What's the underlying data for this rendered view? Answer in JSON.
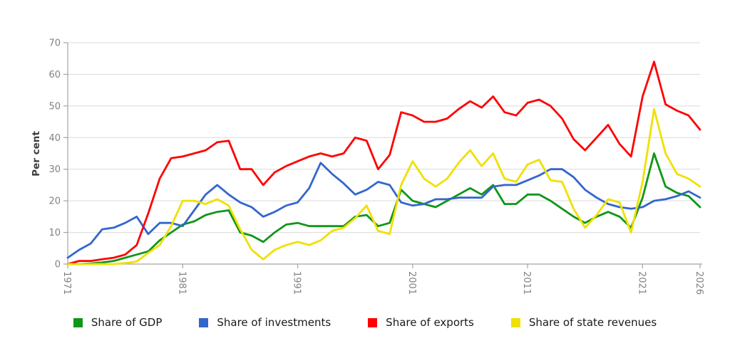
{
  "chart_data": {
    "type": "line",
    "title": "",
    "xlabel": "",
    "ylabel": "Per cent",
    "ylim": [
      0,
      70
    ],
    "yticks": [
      0,
      10,
      20,
      30,
      40,
      50,
      60,
      70
    ],
    "xticks": [
      1971,
      1981,
      1991,
      2001,
      2011,
      2021,
      2026
    ],
    "xlim": [
      1971,
      2026
    ],
    "grid": "horizontal",
    "legend_position": "bottom",
    "x": [
      1971,
      1972,
      1973,
      1974,
      1975,
      1976,
      1977,
      1978,
      1979,
      1980,
      1981,
      1982,
      1983,
      1984,
      1985,
      1986,
      1987,
      1988,
      1989,
      1990,
      1991,
      1992,
      1993,
      1994,
      1995,
      1996,
      1997,
      1998,
      1999,
      2000,
      2001,
      2002,
      2003,
      2004,
      2005,
      2006,
      2007,
      2008,
      2009,
      2010,
      2011,
      2012,
      2013,
      2014,
      2015,
      2016,
      2017,
      2018,
      2019,
      2020,
      2021,
      2022,
      2023,
      2024,
      2025,
      2026
    ],
    "series": [
      {
        "name": "Share of GDP",
        "color": "#109618",
        "values": [
          0,
          0,
          0.2,
          0.5,
          1,
          2,
          3,
          4,
          7.5,
          10,
          12.5,
          13.5,
          15.5,
          16.5,
          17,
          10,
          9,
          7,
          10,
          12.5,
          13,
          12,
          12,
          12,
          12,
          15,
          15.5,
          12,
          13,
          23.5,
          20,
          19,
          18,
          20,
          22,
          24,
          22,
          25,
          19,
          19,
          22,
          22,
          20,
          17.5,
          15,
          13,
          15,
          16.5,
          15,
          11.5,
          21,
          35,
          24.5,
          22.5,
          21.5,
          18
        ]
      },
      {
        "name": "Share of investments",
        "color": "#3366cc",
        "values": [
          2,
          4.5,
          6.5,
          11,
          11.5,
          13,
          15,
          9.5,
          13,
          13,
          12,
          17,
          22,
          25,
          22,
          19.5,
          18,
          15,
          16.5,
          18.5,
          19.5,
          24,
          32,
          28.5,
          25.5,
          22,
          23.5,
          26,
          25,
          19.5,
          18.5,
          19,
          20.5,
          20.5,
          21,
          21,
          21,
          24.5,
          25,
          25,
          26.5,
          28,
          30,
          30,
          27.5,
          23.5,
          21,
          19,
          18,
          17.5,
          18,
          20,
          20.5,
          21.5,
          23,
          21
        ]
      },
      {
        "name": "Share of exports",
        "color": "#ff0000",
        "values": [
          0,
          1,
          1,
          1.5,
          2,
          3,
          6,
          16,
          27,
          33.5,
          34,
          35,
          36,
          38.5,
          39,
          30,
          30,
          25,
          29,
          31,
          32.5,
          34,
          35,
          34,
          35,
          40,
          39,
          30,
          34.5,
          48,
          47,
          45,
          45,
          46,
          49,
          51.5,
          49.5,
          53,
          48,
          47,
          51,
          52,
          50,
          46,
          39.5,
          36,
          40,
          44,
          38,
          34,
          53,
          64,
          50.5,
          48.5,
          47,
          42.5
        ]
      },
      {
        "name": "Share of state revenues",
        "color": "#f0e000",
        "values": [
          0,
          0,
          0,
          0,
          0,
          0.3,
          0.8,
          3.5,
          6,
          12,
          20,
          20,
          19,
          20.5,
          18.5,
          11,
          4.5,
          1.5,
          4.5,
          6,
          7,
          6,
          7.5,
          10.5,
          11.5,
          14.5,
          18.5,
          10.5,
          9.5,
          25,
          32.5,
          27,
          24.5,
          27,
          32,
          36,
          31,
          35,
          27,
          26,
          31.5,
          33,
          26.5,
          26,
          17.5,
          11.5,
          15.5,
          20.5,
          19.5,
          10,
          26,
          49,
          35,
          28.5,
          27,
          24.5
        ]
      }
    ]
  },
  "style": {
    "grid_color": "#d9d9d9",
    "axis_color": "#a3a3a3",
    "tick_color": "#a3a3a3",
    "tick_label_color": "#808080",
    "background": "#ffffff"
  }
}
